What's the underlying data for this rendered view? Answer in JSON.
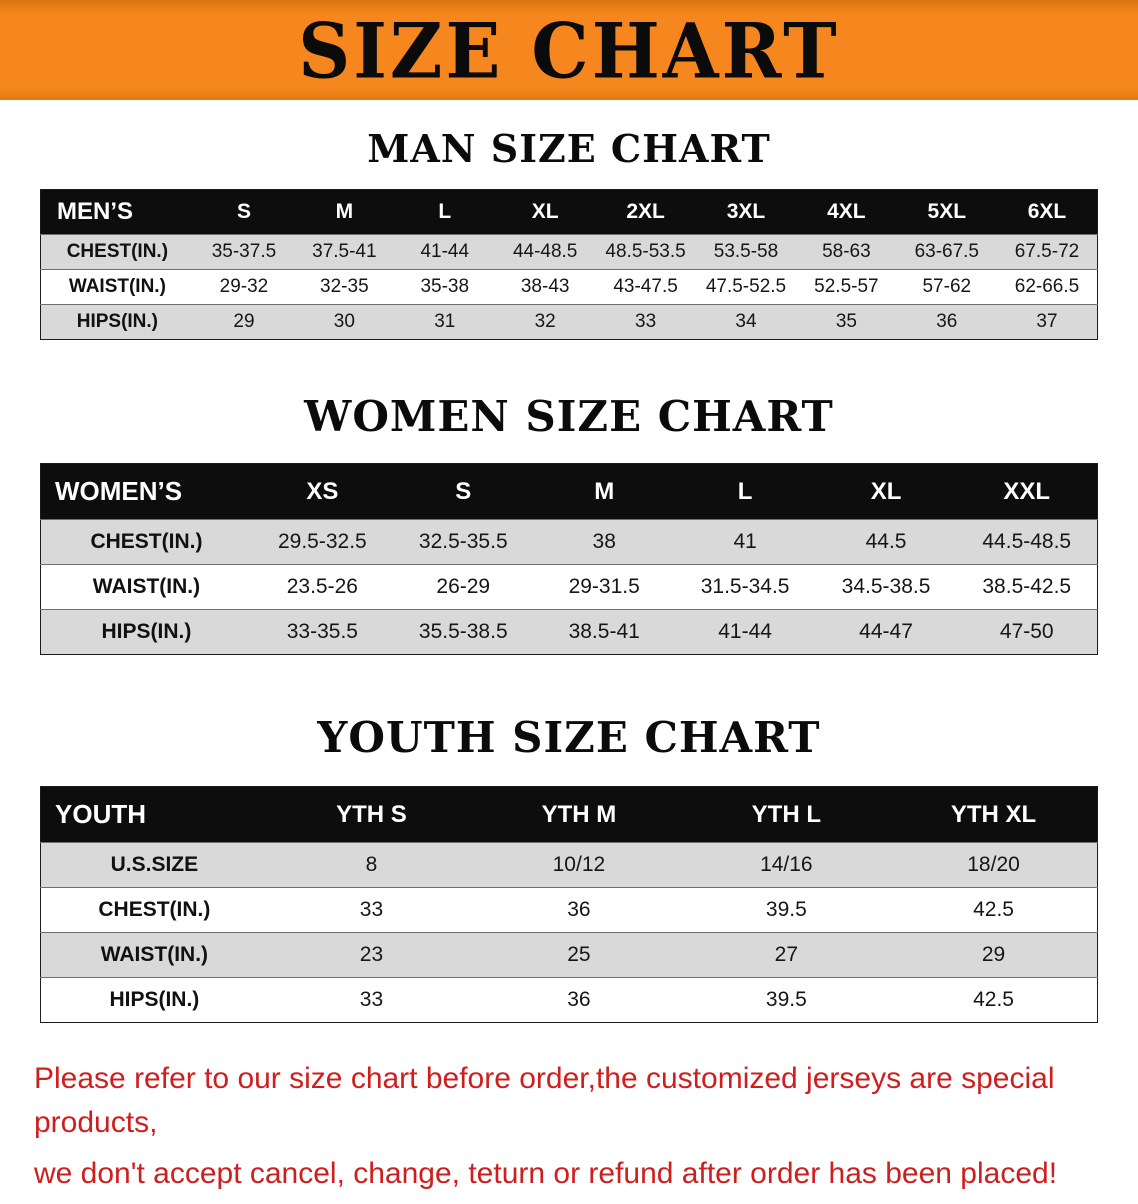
{
  "banner": {
    "title": "SIZE CHART",
    "bg_color": "#F6871E"
  },
  "colors": {
    "header_row_bg": "#0D0D0D",
    "alt_row_bg": "#D9D9D9",
    "footer_text": "#CE1F1F"
  },
  "chart_data": [
    {
      "type": "table",
      "title": "MAN SIZE CHART",
      "columns": [
        "MEN’S",
        "S",
        "M",
        "L",
        "XL",
        "2XL",
        "3XL",
        "4XL",
        "5XL",
        "6XL"
      ],
      "rows": [
        [
          "CHEST(IN.)",
          "35-37.5",
          "37.5-41",
          "41-44",
          "44-48.5",
          "48.5-53.5",
          "53.5-58",
          "58-63",
          "63-67.5",
          "67.5-72"
        ],
        [
          "WAIST(IN.)",
          "29-32",
          "32-35",
          "35-38",
          "38-43",
          "43-47.5",
          "47.5-52.5",
          "52.5-57",
          "57-62",
          "62-66.5"
        ],
        [
          "HIPS(IN.)",
          "29",
          "30",
          "31",
          "32",
          "33",
          "34",
          "35",
          "36",
          "37"
        ]
      ]
    },
    {
      "type": "table",
      "title": "WOMEN SIZE CHART",
      "columns": [
        "WOMEN’S",
        "XS",
        "S",
        "M",
        "L",
        "XL",
        "XXL"
      ],
      "rows": [
        [
          "CHEST(IN.)",
          "29.5-32.5",
          "32.5-35.5",
          "38",
          "41",
          "44.5",
          "44.5-48.5"
        ],
        [
          "WAIST(IN.)",
          "23.5-26",
          "26-29",
          "29-31.5",
          "31.5-34.5",
          "34.5-38.5",
          "38.5-42.5"
        ],
        [
          "HIPS(IN.)",
          "33-35.5",
          "35.5-38.5",
          "38.5-41",
          "41-44",
          "44-47",
          "47-50"
        ]
      ]
    },
    {
      "type": "table",
      "title": "YOUTH SIZE CHART",
      "columns": [
        "YOUTH",
        "YTH S",
        "YTH M",
        "YTH L",
        "YTH XL"
      ],
      "rows": [
        [
          "U.S.SIZE",
          "8",
          "10/12",
          "14/16",
          "18/20"
        ],
        [
          "CHEST(IN.)",
          "33",
          "36",
          "39.5",
          "42.5"
        ],
        [
          "WAIST(IN.)",
          "23",
          "25",
          "27",
          "29"
        ],
        [
          "HIPS(IN.)",
          "33",
          "36",
          "39.5",
          "42.5"
        ]
      ]
    }
  ],
  "footer": {
    "line1": "Please refer to our size chart before order,the customized jerseys are special products,",
    "line2": "we don't accept cancel, change, teturn or refund after order has been placed!"
  }
}
